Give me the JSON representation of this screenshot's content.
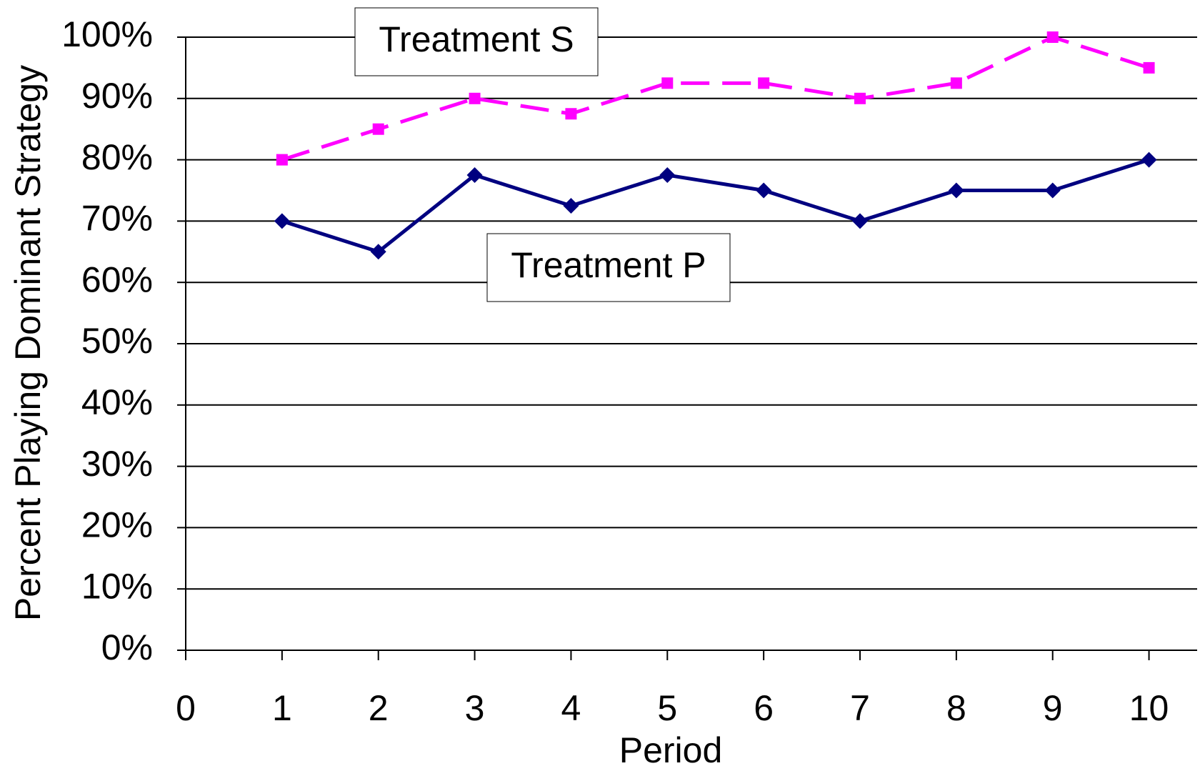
{
  "chart_data": {
    "type": "line",
    "x_label": "Period",
    "y_label": "Percent Playing Dominant Strategy",
    "x": [
      1,
      2,
      3,
      4,
      5,
      6,
      7,
      8,
      9,
      10
    ],
    "xlim": [
      0,
      10.5
    ],
    "xticks": [
      0,
      1,
      2,
      3,
      4,
      5,
      6,
      7,
      8,
      9,
      10
    ],
    "ylim": [
      0,
      100
    ],
    "yticks": [
      {
        "value": 0,
        "label": "0%"
      },
      {
        "value": 10,
        "label": "10%"
      },
      {
        "value": 20,
        "label": "20%"
      },
      {
        "value": 30,
        "label": "30%"
      },
      {
        "value": 40,
        "label": "40%"
      },
      {
        "value": 50,
        "label": "50%"
      },
      {
        "value": 60,
        "label": "60%"
      },
      {
        "value": 70,
        "label": "70%"
      },
      {
        "value": 80,
        "label": "80%"
      },
      {
        "value": 90,
        "label": "90%"
      },
      {
        "value": 100,
        "label": "100%"
      }
    ],
    "grid": true,
    "series": [
      {
        "name": "Treatment P",
        "color": "#000080",
        "marker": "diamond",
        "style": "solid",
        "values": [
          70,
          65,
          77.5,
          72.5,
          77.5,
          75,
          70,
          75,
          75,
          80
        ]
      },
      {
        "name": "Treatment S",
        "color": "#ff00ff",
        "marker": "square",
        "style": "dashed",
        "values": [
          80,
          85,
          90,
          87.5,
          92.5,
          92.5,
          90,
          92.5,
          100,
          95
        ]
      }
    ]
  }
}
